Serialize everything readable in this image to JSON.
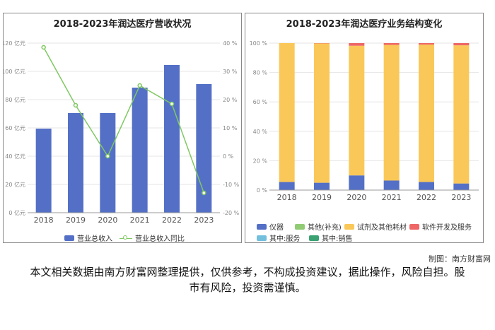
{
  "left_chart": {
    "title": "2018-2023年润达医疗营收状况",
    "legend": {
      "bar": "营业总收入",
      "line": "营业总收入同比"
    },
    "left_ticks": [
      "0 亿元",
      "20 亿元",
      "40 亿元",
      "60 亿元",
      "80 亿元",
      "100 亿元",
      "120 亿元"
    ],
    "right_ticks": [
      "-20 %",
      "-10 %",
      "0 %",
      "10 %",
      "20 %",
      "30 %",
      "40 %"
    ]
  },
  "right_chart": {
    "title": "2018-2023年润达医疗业务结构变化",
    "y_ticks": [
      "0 %",
      "20 %",
      "40 %",
      "60 %",
      "80 %",
      "100 %"
    ]
  },
  "chart_data": [
    {
      "type": "bar",
      "title": "2018-2023年润达医疗营收状况",
      "categories": [
        "2018",
        "2019",
        "2020",
        "2021",
        "2022",
        "2023"
      ],
      "series": [
        {
          "name": "营业总收入",
          "type": "bar",
          "axis": "left",
          "unit": "亿元",
          "values": [
            59.5,
            70.5,
            70.5,
            88.5,
            104.5,
            91.0
          ]
        },
        {
          "name": "营业总收入同比",
          "type": "line",
          "axis": "right",
          "unit": "%",
          "values": [
            38.5,
            18.0,
            0.0,
            25.0,
            18.5,
            -13.0
          ]
        }
      ],
      "ylim": [
        0,
        120
      ],
      "y2lim": [
        -20,
        40
      ],
      "colors": {
        "bar": "#5470c6",
        "line": "#7fc862"
      },
      "legend_position": "bottom"
    },
    {
      "type": "bar",
      "stacked": true,
      "title": "2018-2023年润达医疗业务结构变化",
      "categories": [
        "2018",
        "2019",
        "2020",
        "2021",
        "2022",
        "2023"
      ],
      "series": [
        {
          "name": "仪器",
          "color": "#5470c6",
          "values": [
            5.5,
            5.0,
            10.0,
            6.5,
            5.5,
            4.5
          ]
        },
        {
          "name": "其他(补充)",
          "color": "#91cc75",
          "values": [
            0,
            0,
            0,
            0,
            0,
            0
          ]
        },
        {
          "name": "试剂及其他耗材",
          "color": "#fac858",
          "values": [
            94.5,
            94.8,
            88.2,
            92.3,
            93.5,
            94.0
          ]
        },
        {
          "name": "软件开发及服务",
          "color": "#ee6666",
          "values": [
            0,
            0.2,
            1.8,
            1.2,
            1.0,
            1.5
          ]
        },
        {
          "name": "其中:服务",
          "color": "#73c0de",
          "values": [
            0,
            0,
            0,
            0,
            0,
            0
          ]
        },
        {
          "name": "其中:销售",
          "color": "#3ba272",
          "values": [
            0,
            0,
            0,
            0,
            0,
            0
          ]
        }
      ],
      "ylim": [
        0,
        100
      ],
      "legend_position": "bottom"
    }
  ],
  "credit": "制图：南方财富网",
  "disclaimer": "本文相关数据由南方财富网整理提供，仅供参考，不构成投资建议，据此操作，风险自担。股市有风险，投资需谨慎。"
}
